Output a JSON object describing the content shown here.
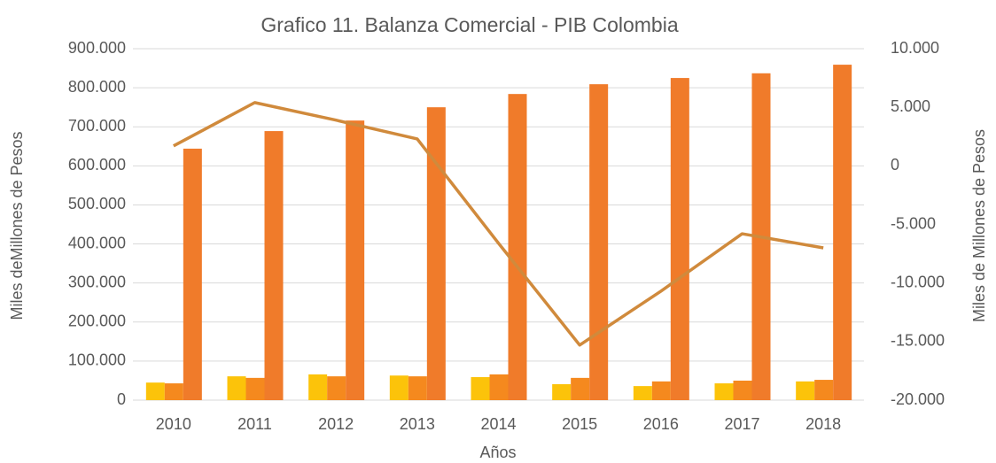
{
  "chart_data": {
    "type": "bar",
    "title": "Grafico 11. Balanza Comercial - PIB Colombia",
    "xlabel": "Años",
    "ylabel": "Miles deMillones de Pesos",
    "y2label": "Miles de Millones de Pesos",
    "categories": [
      "2010",
      "2011",
      "2012",
      "2013",
      "2014",
      "2015",
      "2016",
      "2017",
      "2018"
    ],
    "series": [
      {
        "type": "bar",
        "color": "#fcc30a",
        "values": [
          45000,
          61000,
          66000,
          63000,
          59000,
          41000,
          36000,
          43000,
          48000
        ]
      },
      {
        "type": "bar",
        "color": "#f5891e",
        "values": [
          43000,
          57000,
          61000,
          61000,
          66000,
          57000,
          48000,
          50000,
          52000
        ]
      },
      {
        "type": "bar",
        "color": "#f07b2a",
        "values": [
          644000,
          689000,
          716000,
          750000,
          784000,
          809000,
          825000,
          837000,
          859000
        ]
      },
      {
        "type": "line",
        "axis": "y2",
        "color": "#d08a3c",
        "values": [
          1700,
          5400,
          3900,
          2300,
          -6600,
          -15300,
          -10700,
          -5800,
          -7000
        ]
      }
    ],
    "ylim": [
      0,
      900000
    ],
    "yticks": [
      0,
      {
        "value": 100000,
        "label": "100.000"
      },
      {
        "value": 200000,
        "label": "200.000"
      },
      {
        "value": 300000,
        "label": "300.000"
      },
      {
        "value": 400000,
        "label": "400.000"
      },
      {
        "value": 500000,
        "label": "500.000"
      },
      {
        "value": 600000,
        "label": "600.000"
      },
      {
        "value": 700000,
        "label": "700.000"
      },
      {
        "value": 800000,
        "label": "800.000"
      },
      {
        "value": 900000,
        "label": "900.000"
      }
    ],
    "y2lim": [
      -20000,
      10000
    ],
    "y2ticks": [
      {
        "value": -20000,
        "label": "-20.000"
      },
      {
        "value": -15000,
        "label": "-15.000"
      },
      {
        "value": -10000,
        "label": "-10.000"
      },
      {
        "value": -5000,
        "label": "-5.000"
      },
      0,
      {
        "value": 5000,
        "label": "5.000"
      },
      {
        "value": 10000,
        "label": "10.000"
      }
    ],
    "grid": true
  }
}
